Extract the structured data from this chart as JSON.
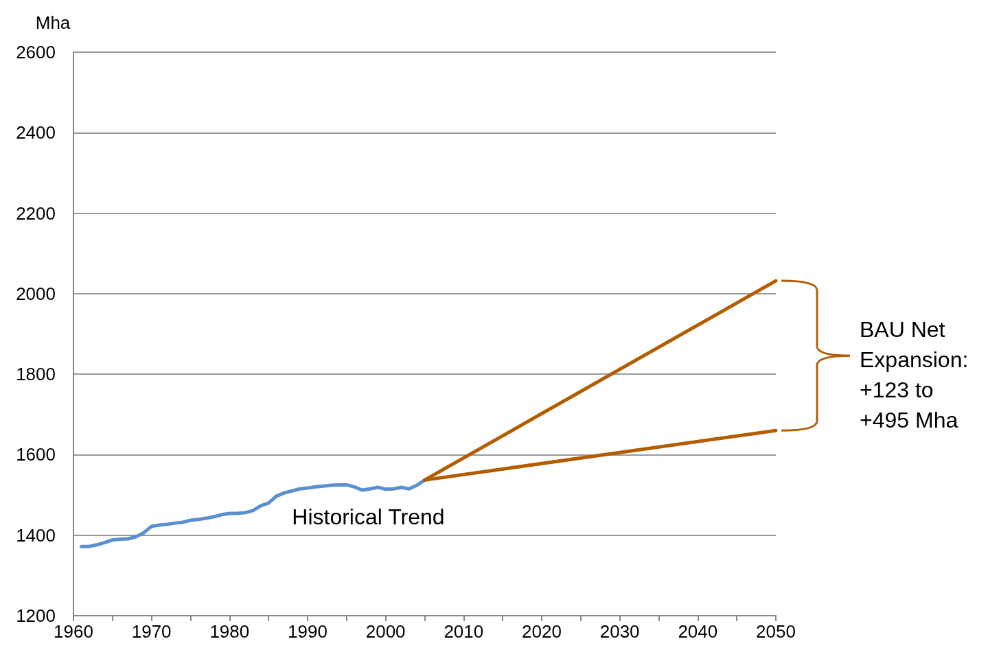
{
  "chart_data": {
    "type": "line",
    "ylabel": "Mha",
    "xlim": [
      1960,
      2050
    ],
    "ylim": [
      1200,
      2600
    ],
    "xticks": [
      1960,
      {
        "value": 1965,
        "label": null
      },
      1970,
      {
        "value": 1975,
        "label": null
      },
      1980,
      {
        "value": 1985,
        "label": null
      },
      1990,
      {
        "value": 1995,
        "label": null
      },
      2000,
      {
        "value": 2005,
        "label": null
      },
      2010,
      {
        "value": 2015,
        "label": null
      },
      2020,
      {
        "value": 2025,
        "label": null
      },
      2030,
      {
        "value": 2035,
        "label": null
      },
      2040,
      {
        "value": 2045,
        "label": null
      },
      2050
    ],
    "yticks": [
      1200,
      1400,
      1600,
      1800,
      2000,
      2200,
      2400,
      2600
    ],
    "grid": "y",
    "marker": "none",
    "line_style": "solid",
    "legend": false,
    "series": [
      {
        "name": "Historical Trend",
        "color": "#5b8fcf",
        "x": [
          1961,
          1962,
          1963,
          1964,
          1965,
          1966,
          1967,
          1968,
          1969,
          1970,
          1971,
          1972,
          1973,
          1974,
          1975,
          1976,
          1977,
          1978,
          1979,
          1980,
          1981,
          1982,
          1983,
          1984,
          1985,
          1986,
          1987,
          1988,
          1989,
          1990,
          1991,
          1992,
          1993,
          1994,
          1995,
          1996,
          1997,
          1998,
          1999,
          2000,
          2001,
          2002,
          2003,
          2004,
          2005
        ],
        "values": [
          1372,
          1372,
          1376,
          1382,
          1388,
          1390,
          1391,
          1396,
          1406,
          1422,
          1425,
          1427,
          1430,
          1432,
          1437,
          1439,
          1442,
          1446,
          1451,
          1454,
          1454,
          1456,
          1461,
          1473,
          1480,
          1497,
          1505,
          1510,
          1515,
          1517,
          1520,
          1522,
          1524,
          1525,
          1525,
          1520,
          1512,
          1515,
          1519,
          1514,
          1515,
          1519,
          1515,
          1524,
          1537
        ]
      },
      {
        "color": "#b35c00",
        "x": [
          2005,
          2050
        ],
        "values": [
          1537,
          2032
        ]
      },
      {
        "color": "#b35c00",
        "x": [
          2005,
          2050
        ],
        "values": [
          1537,
          1660
        ]
      }
    ],
    "annotations": [
      "BAU Net\nExpansion:\n+123 to\n+495 Mha"
    ]
  }
}
